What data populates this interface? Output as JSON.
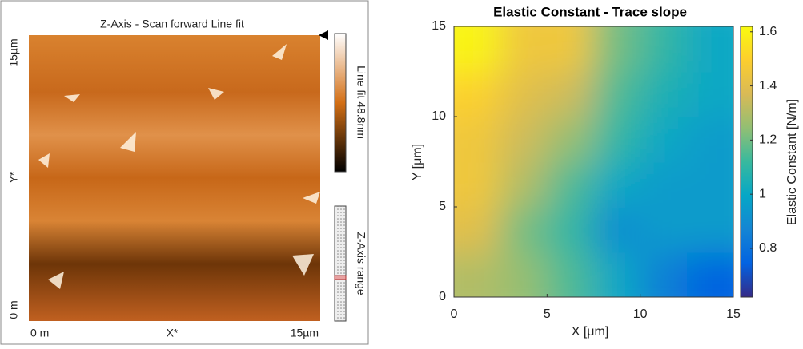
{
  "afm_panel": {
    "title": "Z-Axis - Scan forward   Line fit",
    "y_top": "15µm",
    "y_bottom": "0 m",
    "y_axis": "Y*",
    "x_left": "0 m",
    "x_axis": "X*",
    "x_right": "15µm",
    "colorbar_label": "Line fit 48.8nm",
    "range_label": "Z-Axis range"
  },
  "chart_data": {
    "type": "heatmap",
    "title": "Elastic Constant - Trace slope",
    "x_label": "X [μm]",
    "y_label": "Y [μm]",
    "xlim": [
      0,
      15
    ],
    "ylim": [
      0,
      15
    ],
    "xticks": [
      0,
      5,
      10,
      15
    ],
    "yticks": [
      0,
      5,
      10,
      15
    ],
    "z": [
      [
        1.3,
        1.25,
        1.15,
        1.0,
        0.85,
        0.75
      ],
      [
        1.4,
        1.2,
        1.1,
        0.9,
        0.95,
        0.95
      ],
      [
        1.45,
        1.3,
        1.15,
        1.0,
        0.95,
        0.95
      ],
      [
        1.45,
        1.35,
        1.25,
        1.1,
        1.0,
        0.95
      ],
      [
        1.5,
        1.4,
        1.35,
        1.15,
        1.05,
        1.0
      ],
      [
        1.6,
        1.45,
        1.45,
        1.2,
        1.1,
        1.0
      ]
    ],
    "clim": [
      0.62,
      1.62
    ],
    "colorbar_ticks": [
      0.8,
      1,
      1.2,
      1.4,
      1.6
    ],
    "colorbar_label": "Elastic Constant [N/m]",
    "colormap": "parula"
  }
}
